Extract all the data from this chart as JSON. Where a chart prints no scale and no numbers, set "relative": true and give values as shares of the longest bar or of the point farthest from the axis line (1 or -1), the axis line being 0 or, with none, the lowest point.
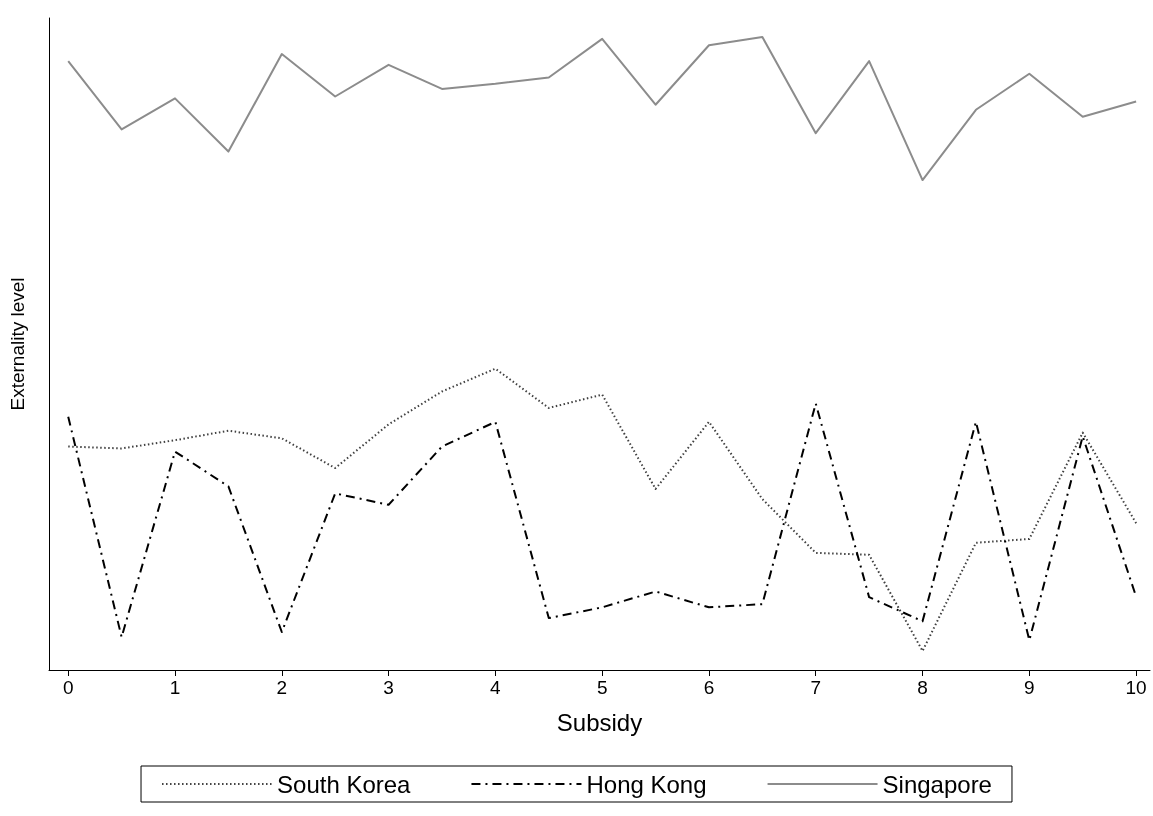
{
  "chart_data": {
    "type": "line",
    "xlabel": "Subsidy",
    "ylabel": "Externality level",
    "relative": true,
    "x": [
      0,
      0.5,
      1,
      1.5,
      2,
      2.5,
      3,
      3.5,
      4,
      4.5,
      5,
      5.5,
      6,
      6.5,
      7,
      7.5,
      8,
      8.5,
      9,
      9.5,
      10
    ],
    "xlim": [
      -0.18,
      10.13
    ],
    "xticks": [
      0,
      1,
      2,
      3,
      4,
      5,
      6,
      7,
      8,
      9,
      10
    ],
    "series": [
      {
        "name": "South Korea",
        "color": "#404040",
        "line_style": "dotted",
        "values": [
          0.353,
          0.35,
          0.363,
          0.378,
          0.366,
          0.319,
          0.388,
          0.44,
          0.476,
          0.414,
          0.435,
          0.286,
          0.392,
          0.27,
          0.185,
          0.182,
          0.03,
          0.201,
          0.207,
          0.375,
          0.232
        ]
      },
      {
        "name": "Hong Kong",
        "color": "#000000",
        "line_style": "dashed",
        "values": [
          0.4,
          0.052,
          0.345,
          0.29,
          0.06,
          0.279,
          0.261,
          0.353,
          0.392,
          0.082,
          0.099,
          0.124,
          0.099,
          0.104,
          0.421,
          0.115,
          0.077,
          0.392,
          0.047,
          0.369,
          0.116
        ]
      },
      {
        "name": "Singapore",
        "color": "#8c8c8c",
        "line_style": "solid",
        "values": [
          0.962,
          0.854,
          0.903,
          0.819,
          0.973,
          0.906,
          0.956,
          0.918,
          0.926,
          0.936,
          0.997,
          0.893,
          0.987,
          1,
          0.848,
          0.962,
          0.774,
          0.885,
          0.942,
          0.874,
          0.898
        ]
      }
    ],
    "grid": false,
    "legend": "bottom",
    "marker": "none"
  }
}
